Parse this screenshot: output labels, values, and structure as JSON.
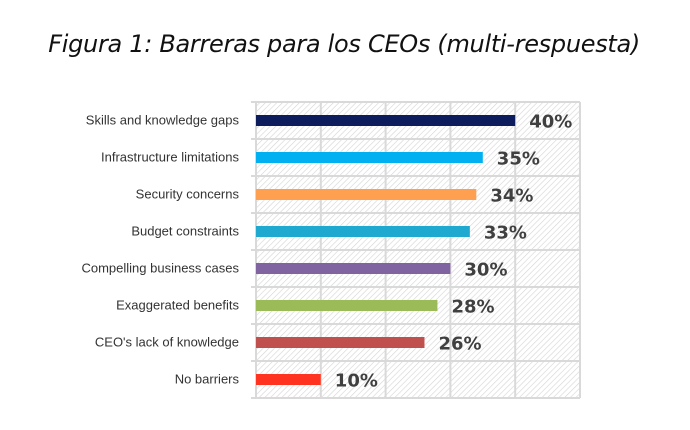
{
  "chart_data": {
    "type": "bar",
    "orientation": "horizontal",
    "title": "Figura 1: Barreras para los CEOs (multi-respuesta)",
    "categories": [
      "Skills and knowledge gaps",
      "Infrastructure limitations",
      "Security concerns",
      "Budget constraints",
      "Compelling business cases",
      "Exaggerated benefits",
      "CEO's lack of knowledge",
      "No barriers"
    ],
    "values": [
      40,
      35,
      34,
      33,
      30,
      28,
      26,
      10
    ],
    "data_labels": [
      "40%",
      "35%",
      "34%",
      "33%",
      "30%",
      "28%",
      "26%",
      "10%"
    ],
    "colors": [
      "#0c1c5c",
      "#00b0f0",
      "#ffa050",
      "#1fa8d0",
      "#8064a2",
      "#9bbb59",
      "#c0504d",
      "#ff3320"
    ],
    "xlim": [
      0,
      50
    ],
    "grid": true,
    "xlabel": "",
    "ylabel": ""
  }
}
